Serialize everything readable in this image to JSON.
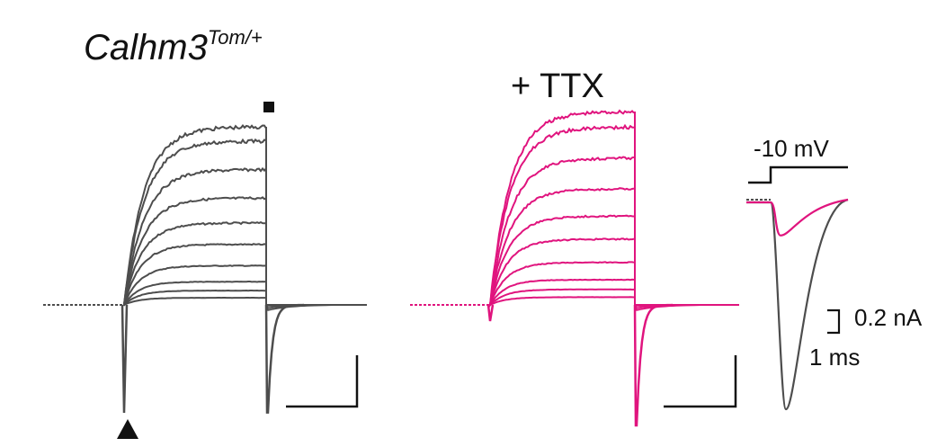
{
  "colors": {
    "control": "#4d4d4d",
    "ttx": "#e0147e",
    "text": "#111111"
  },
  "labels": {
    "control_gene": "Calhm3",
    "control_genotype": "Tom/+",
    "ttx_title": "+ TTX",
    "inset_voltage": "-10 mV",
    "inset_scale_current": "0.2 nA",
    "inset_scale_time": "1 ms"
  },
  "markers": {
    "end_marker": "square",
    "onset_marker": "triangle"
  },
  "chart_data": [
    {
      "type": "line",
      "panel": "control",
      "title": "Calhm3 Tom/+",
      "xlabel": "",
      "ylabel": "",
      "series": [
        {
          "steady": 0.04,
          "tau": 0.3
        },
        {
          "steady": 0.08,
          "tau": 0.3
        },
        {
          "steady": 0.13,
          "tau": 0.3
        },
        {
          "steady": 0.22,
          "tau": 0.32
        },
        {
          "steady": 0.34,
          "tau": 0.34
        },
        {
          "steady": 0.46,
          "tau": 0.36
        },
        {
          "steady": 0.6,
          "tau": 0.38
        },
        {
          "steady": 0.76,
          "tau": 0.4
        },
        {
          "steady": 0.92,
          "tau": 0.4
        },
        {
          "steady": 1.0,
          "tau": 0.4
        }
      ],
      "onset_transient": -1.0,
      "tail_transient": -0.98
    },
    {
      "type": "line",
      "panel": "ttx",
      "title": "+ TTX",
      "xlabel": "",
      "ylabel": "",
      "series": [
        {
          "steady": 0.04,
          "tau": 0.3
        },
        {
          "steady": 0.08,
          "tau": 0.3
        },
        {
          "steady": 0.13,
          "tau": 0.3
        },
        {
          "steady": 0.22,
          "tau": 0.32
        },
        {
          "steady": 0.34,
          "tau": 0.34
        },
        {
          "steady": 0.46,
          "tau": 0.36
        },
        {
          "steady": 0.6,
          "tau": 0.38
        },
        {
          "steady": 0.76,
          "tau": 0.4
        },
        {
          "steady": 0.92,
          "tau": 0.4
        },
        {
          "steady": 1.0,
          "tau": 0.4
        }
      ],
      "onset_transient": -0.15,
      "tail_transient": -1.0
    },
    {
      "type": "line",
      "panel": "inset",
      "title": "",
      "xlabel": "1 ms",
      "ylabel": "0.2 nA",
      "series": [
        {
          "name": "control",
          "peak": -1.0
        },
        {
          "name": "ttx",
          "peak": -0.16
        }
      ]
    }
  ]
}
